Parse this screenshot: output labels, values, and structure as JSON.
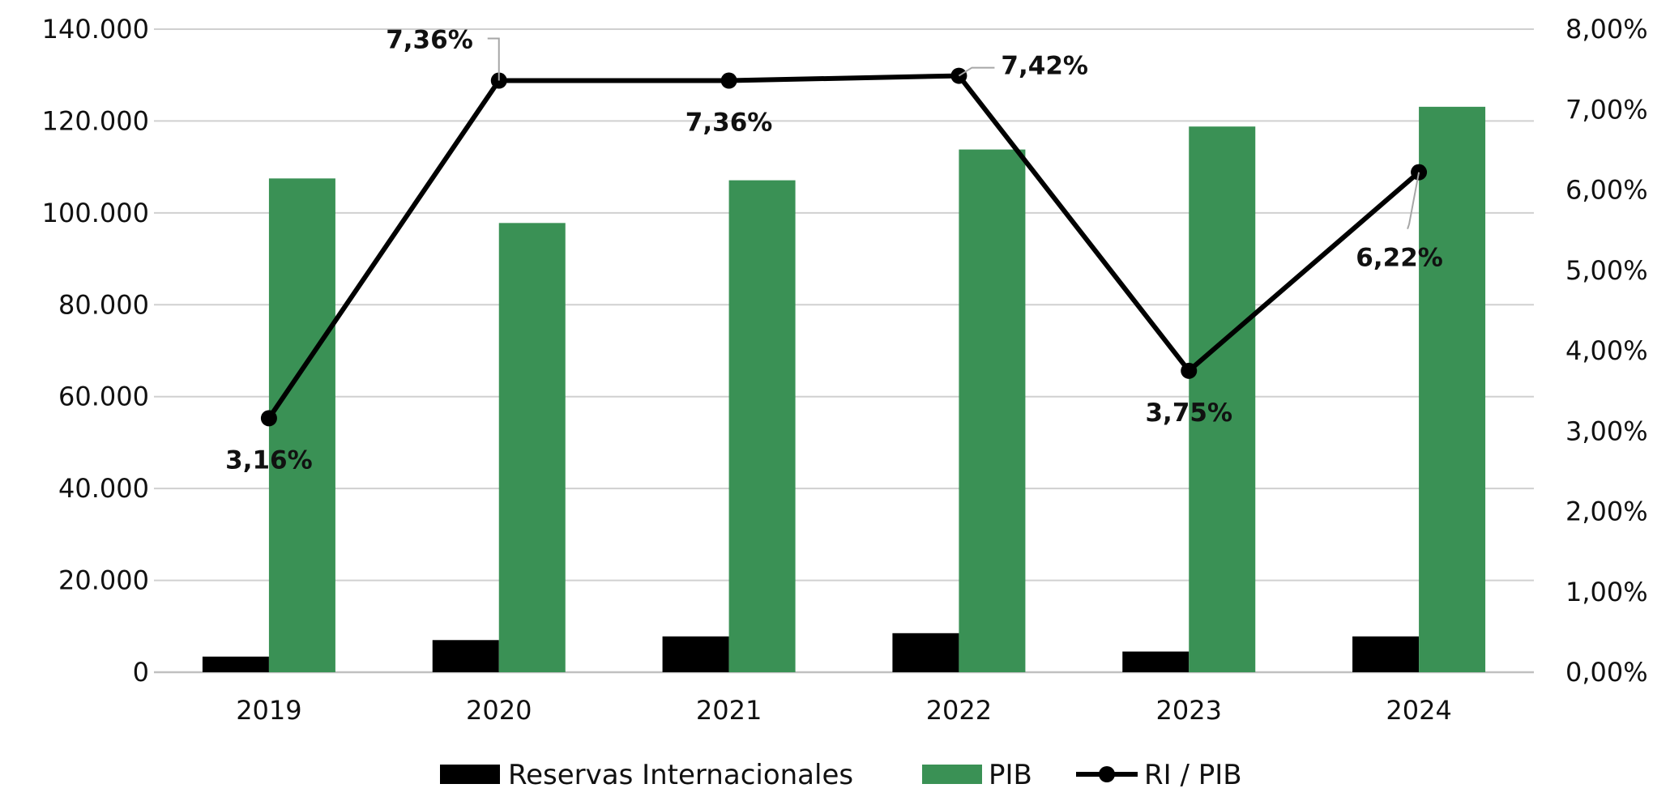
{
  "chart_data": {
    "type": "bar",
    "title": "",
    "categories": [
      "2019",
      "2020",
      "2021",
      "2022",
      "2023",
      "2024"
    ],
    "series": [
      {
        "name": "Reservas Internacionales",
        "type": "bar",
        "axis": "left",
        "color": "#000000",
        "values": [
          3400,
          7000,
          7800,
          8500,
          4500,
          7800
        ]
      },
      {
        "name": "PIB",
        "type": "bar",
        "axis": "left",
        "color": "#3a9155",
        "values": [
          107500,
          97800,
          107100,
          113800,
          118800,
          123100
        ]
      },
      {
        "name": "RI / PIB",
        "type": "line",
        "axis": "right",
        "color": "#000000",
        "values": [
          3.16,
          7.36,
          7.36,
          7.42,
          3.75,
          6.22
        ],
        "labels": [
          "3,16%",
          "7,36%",
          "7,36%",
          "7,42%",
          "3,75%",
          "6,22%"
        ]
      }
    ],
    "y_left": {
      "ylim": [
        0,
        140000
      ],
      "ticks": [
        0,
        20000,
        40000,
        60000,
        80000,
        100000,
        120000,
        140000
      ],
      "tick_labels": [
        "0",
        "20.000",
        "40.000",
        "60.000",
        "80.000",
        "100.000",
        "120.000",
        "140.000"
      ]
    },
    "y_right": {
      "ylim": [
        0,
        8
      ],
      "ticks": [
        0,
        1,
        2,
        3,
        4,
        5,
        6,
        7,
        8
      ],
      "tick_labels": [
        "0,00%",
        "1,00%",
        "2,00%",
        "3,00%",
        "4,00%",
        "5,00%",
        "6,00%",
        "7,00%",
        "8,00%"
      ]
    },
    "grid": true,
    "legend": "bottom",
    "colors": {
      "grid": "#d0d0d0",
      "axis": "#c0c0c0",
      "leader": "#a6a6a6"
    }
  }
}
